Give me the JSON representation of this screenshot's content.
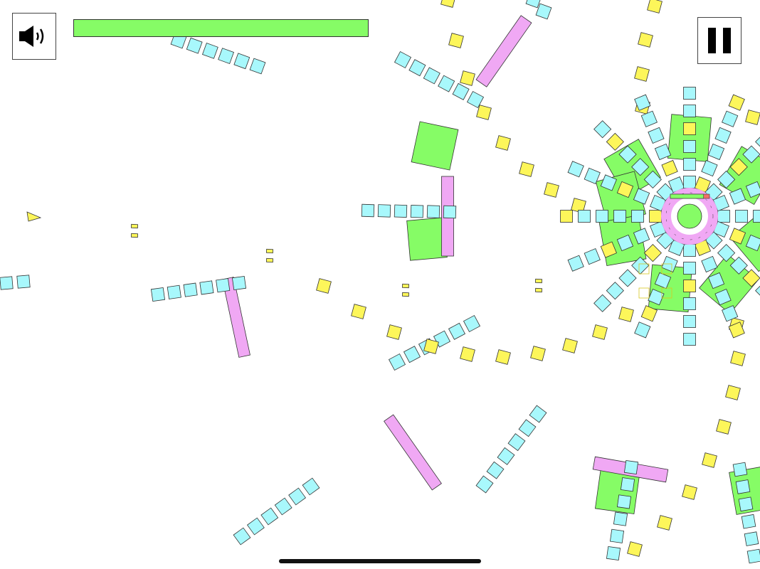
{
  "hud": {
    "sound_button": {
      "icon": "speaker-volume-icon",
      "state": "on"
    },
    "pause_button": {
      "icon": "pause-icon"
    },
    "player_health": {
      "fraction": 1.0,
      "color": "#86fc66"
    },
    "boss_health": {
      "fraction": 0.85,
      "color": "#86fc66",
      "damage_color": "#f07068"
    }
  },
  "colors": {
    "cyan_block": "#a8f8fc",
    "yellow_block": "#fdf65a",
    "green_block": "#86fc66",
    "pink_block": "#f0a8f4",
    "outline": "#333333",
    "background": "#ffffff"
  },
  "player": {
    "icon": "triangle-ship-icon",
    "color": "#fdf65a"
  }
}
